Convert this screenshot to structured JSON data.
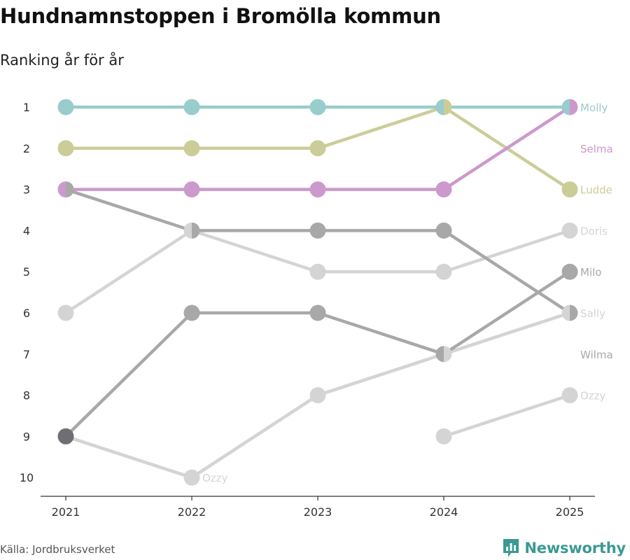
{
  "title": "Hundnamnstoppen i Bromölla kommun",
  "subtitle": "Ranking år för år",
  "source": "Källa: Jordbruksverket",
  "brand": "Newsworthy",
  "colors": {
    "brand": "#3a9a92",
    "axis": "#333333"
  },
  "chart_data": {
    "type": "line",
    "x": [
      "2021",
      "2022",
      "2023",
      "2024",
      "2025"
    ],
    "y_ticks": [
      "1",
      "2",
      "3",
      "4",
      "5",
      "6",
      "7",
      "8",
      "9",
      "10"
    ],
    "ylim": [
      1,
      10
    ],
    "series": [
      {
        "name": "Ozzy",
        "color": "#d4d4d4",
        "ranks": [
          9,
          10,
          8,
          7,
          6
        ]
      },
      {
        "name": "Ozzy",
        "color": "#d4d4d4",
        "ranks": [
          null,
          null,
          null,
          9,
          8
        ]
      },
      {
        "name": "Doris",
        "color": "#d4d4d4",
        "ranks": [
          6,
          4,
          5,
          5,
          4
        ]
      },
      {
        "name": "Sally",
        "color": "#d4d4d4",
        "ranks": [
          9,
          10,
          8,
          7,
          6
        ]
      },
      {
        "name": "Wilma",
        "color": "#a8a8a8",
        "ranks": [
          3,
          4,
          4,
          4,
          6
        ]
      },
      {
        "name": "Milo",
        "color": "#a8a8a8",
        "ranks": [
          9,
          6,
          6,
          7,
          5
        ]
      },
      {
        "name": "Ludde",
        "color": "#cccc99",
        "ranks": [
          2,
          2,
          2,
          1,
          3
        ]
      },
      {
        "name": "Selma",
        "color": "#cc99cc",
        "ranks": [
          3,
          3,
          3,
          3,
          1
        ]
      },
      {
        "name": "Molly",
        "color": "#99cccc",
        "ranks": [
          1,
          1,
          1,
          1,
          1
        ]
      }
    ],
    "labels": [
      {
        "text": "Molly",
        "rank": 1,
        "year": "2025",
        "color": "#99cccc"
      },
      {
        "text": "Selma",
        "rank": 2,
        "year": "2025",
        "color": "#cc99cc"
      },
      {
        "text": "Ludde",
        "rank": 3,
        "year": "2025",
        "color": "#cccc99"
      },
      {
        "text": "Doris",
        "rank": 4,
        "year": "2025",
        "color": "#d4d4d4"
      },
      {
        "text": "Milo",
        "rank": 5,
        "year": "2025",
        "color": "#a8a8a8"
      },
      {
        "text": "Sally",
        "rank": 6,
        "year": "2025",
        "color": "#d4d4d4"
      },
      {
        "text": "Wilma",
        "rank": 7,
        "year": "2025",
        "color": "#a8a8a8"
      },
      {
        "text": "Ozzy",
        "rank": 8,
        "year": "2025",
        "color": "#d4d4d4"
      },
      {
        "text": "Ozzy",
        "rank": 10,
        "year": "2022",
        "color": "#d4d4d4"
      }
    ],
    "markers": [
      {
        "year": "2021",
        "rank": 1,
        "left": "#99cccc",
        "right": "#99cccc"
      },
      {
        "year": "2022",
        "rank": 1,
        "left": "#99cccc",
        "right": "#99cccc"
      },
      {
        "year": "2023",
        "rank": 1,
        "left": "#99cccc",
        "right": "#99cccc"
      },
      {
        "year": "2024",
        "rank": 1,
        "left": "#99cccc",
        "right": "#cccc99"
      },
      {
        "year": "2025",
        "rank": 1,
        "left": "#99cccc",
        "right": "#cc99cc"
      },
      {
        "year": "2021",
        "rank": 2,
        "left": "#cccc99",
        "right": "#cccc99"
      },
      {
        "year": "2022",
        "rank": 2,
        "left": "#cccc99",
        "right": "#cccc99"
      },
      {
        "year": "2023",
        "rank": 2,
        "left": "#cccc99",
        "right": "#cccc99"
      },
      {
        "year": "2025",
        "rank": 3,
        "left": "#cccc99",
        "right": "#cccc99"
      },
      {
        "year": "2021",
        "rank": 3,
        "left": "#cc99cc",
        "right": "#a8a8a8"
      },
      {
        "year": "2022",
        "rank": 3,
        "left": "#cc99cc",
        "right": "#cc99cc"
      },
      {
        "year": "2023",
        "rank": 3,
        "left": "#cc99cc",
        "right": "#cc99cc"
      },
      {
        "year": "2024",
        "rank": 3,
        "left": "#cc99cc",
        "right": "#cc99cc"
      },
      {
        "year": "2022",
        "rank": 4,
        "left": "#d4d4d4",
        "right": "#a8a8a8"
      },
      {
        "year": "2023",
        "rank": 4,
        "left": "#a8a8a8",
        "right": "#a8a8a8"
      },
      {
        "year": "2024",
        "rank": 4,
        "left": "#a8a8a8",
        "right": "#a8a8a8"
      },
      {
        "year": "2025",
        "rank": 4,
        "left": "#d4d4d4",
        "right": "#d4d4d4"
      },
      {
        "year": "2023",
        "rank": 5,
        "left": "#d4d4d4",
        "right": "#d4d4d4"
      },
      {
        "year": "2024",
        "rank": 5,
        "left": "#d4d4d4",
        "right": "#d4d4d4"
      },
      {
        "year": "2025",
        "rank": 5,
        "left": "#a8a8a8",
        "right": "#a8a8a8"
      },
      {
        "year": "2021",
        "rank": 6,
        "left": "#d4d4d4",
        "right": "#d4d4d4"
      },
      {
        "year": "2022",
        "rank": 6,
        "left": "#a8a8a8",
        "right": "#a8a8a8"
      },
      {
        "year": "2023",
        "rank": 6,
        "left": "#a8a8a8",
        "right": "#a8a8a8"
      },
      {
        "year": "2025",
        "rank": 6,
        "left": "#d4d4d4",
        "right": "#a8a8a8"
      },
      {
        "year": "2024",
        "rank": 7,
        "left": "#a8a8a8",
        "right": "#d4d4d4"
      },
      {
        "year": "2023",
        "rank": 8,
        "left": "#d4d4d4",
        "right": "#d4d4d4"
      },
      {
        "year": "2025",
        "rank": 8,
        "left": "#d4d4d4",
        "right": "#d4d4d4"
      },
      {
        "year": "2021",
        "rank": 9,
        "left": "#6e6e74",
        "right": "#6e6e74"
      },
      {
        "year": "2024",
        "rank": 9,
        "left": "#d4d4d4",
        "right": "#d4d4d4"
      },
      {
        "year": "2022",
        "rank": 10,
        "left": "#d4d4d4",
        "right": "#d4d4d4"
      }
    ]
  }
}
